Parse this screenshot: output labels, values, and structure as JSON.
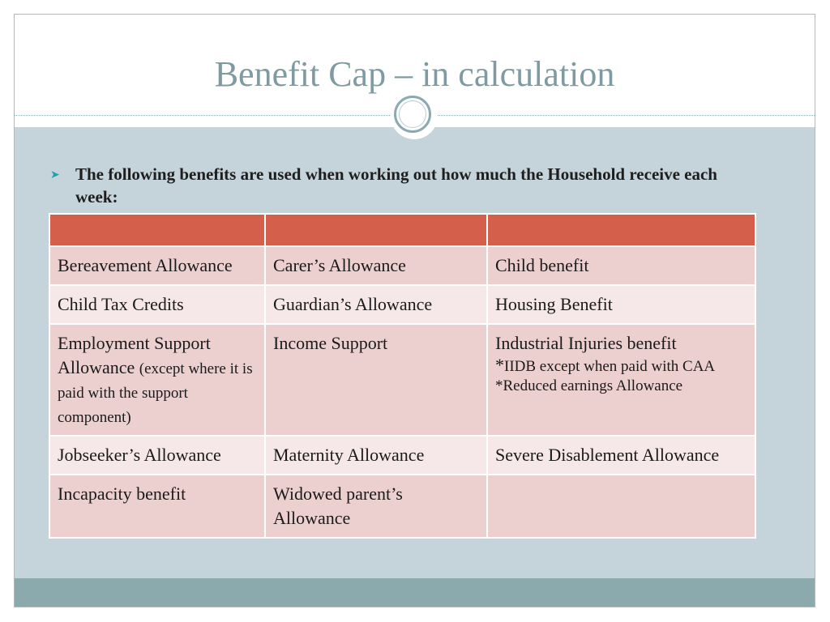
{
  "slide": {
    "title": "Benefit Cap – in calculation",
    "bullet": "The following benefits are used when working out how much the Household receive each week:"
  },
  "table": {
    "headers": [
      "",
      "",
      ""
    ],
    "rows": [
      {
        "c1": "Bereavement Allowance",
        "c2": "Carer’s Allowance",
        "c3": "Child benefit"
      },
      {
        "c1": "Child Tax Credits",
        "c2": "Guardian’s Allowance",
        "c3": "Housing Benefit"
      },
      {
        "c1_main": "Employment Support Allowance",
        "c1_note": "(except where it is paid with the support component)",
        "c2": "Income Support",
        "c3_main": "Industrial Injuries benefit",
        "c3_note1_star": "*",
        "c3_note1": "IIDB except when paid with CAA",
        "c3_note2": "*Reduced earnings Allowance"
      },
      {
        "c1": "Jobseeker’s Allowance",
        "c2": "Maternity Allowance",
        "c3": "Severe Disablement Allowance"
      },
      {
        "c1": "Incapacity benefit",
        "c2": "Widowed parent’s Allowance",
        "c3": ""
      }
    ]
  },
  "colors": {
    "header": "#d4604b",
    "row_a": "#ecd0cf",
    "row_b": "#f6e8e8",
    "background": "#c5d3da",
    "title": "#7f9aa1",
    "footer": "#8aaaae",
    "bullet_mark": "#1fa3b0"
  },
  "icons": {
    "bullet": "arrow-bullet-icon",
    "ornament": "circle-ornament-icon"
  }
}
